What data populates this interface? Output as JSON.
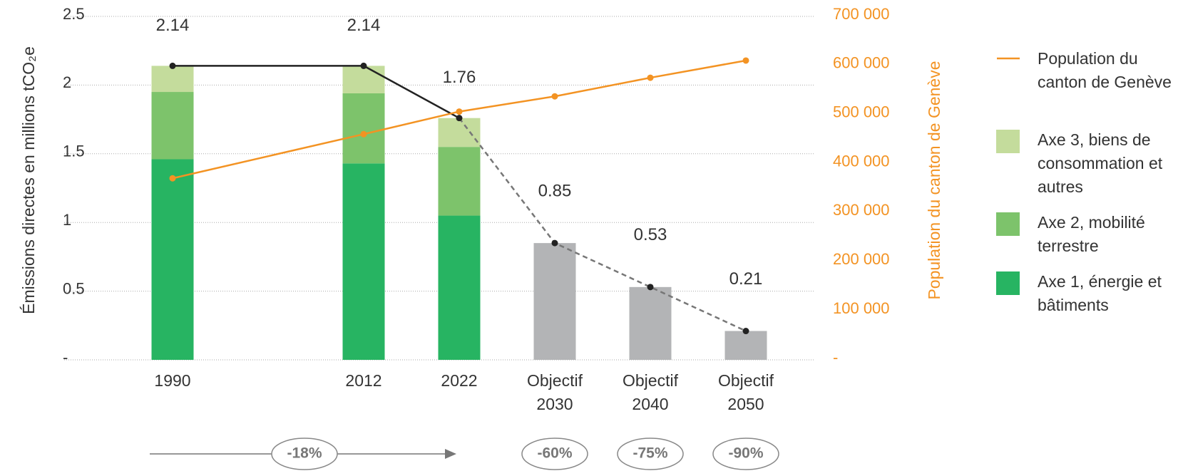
{
  "chart_data": {
    "type": "bar",
    "categories": [
      "1990",
      "2012",
      "2022",
      "Objectif 2030",
      "Objectif 2040",
      "Objectif 2050"
    ],
    "ylabel": "Émissions directes en millions tCO₂e",
    "y2label": "Population du canton de Genève",
    "ylim": [
      0,
      2.5
    ],
    "yticks": [
      {
        "value": 0,
        "label": "-"
      },
      0.5,
      1,
      1.5,
      2,
      2.5
    ],
    "y2lim": [
      0,
      700000
    ],
    "y2ticks": [
      {
        "value": 0,
        "label": "-"
      },
      {
        "value": 100000,
        "label": "100 000"
      },
      {
        "value": 200000,
        "label": "200 000"
      },
      {
        "value": 300000,
        "label": "300 000"
      },
      {
        "value": 400000,
        "label": "400 000"
      },
      {
        "value": 500000,
        "label": "500 000"
      },
      {
        "value": 600000,
        "label": "600 000"
      },
      {
        "value": 700000,
        "label": "700 000"
      }
    ],
    "grid": true,
    "series": [
      {
        "name": "Axe 1, énergie et bâtiments",
        "color": "#27b462",
        "values": [
          1.46,
          1.43,
          1.05,
          null,
          null,
          null
        ]
      },
      {
        "name": "Axe 2, mobilité terrestre",
        "color": "#7dc36b",
        "values": [
          0.49,
          0.51,
          0.5,
          null,
          null,
          null
        ]
      },
      {
        "name": "Axe 3, biens de consommation et autres",
        "color": "#c4dc9c",
        "values": [
          0.19,
          0.2,
          0.21,
          null,
          null,
          null
        ]
      },
      {
        "name": "Population du canton de Genève",
        "color": "#f39323",
        "axis": "y2",
        "values": [
          370000,
          460000,
          506000,
          537000,
          575000,
          610000
        ]
      }
    ],
    "totals": {
      "color": "#222222",
      "target_color": "#b3b4b6",
      "values": [
        2.14,
        2.14,
        1.76,
        0.85,
        0.53,
        0.21
      ]
    },
    "annotations": [
      "-18%",
      "-60%",
      "-75%",
      "-90%"
    ]
  }
}
